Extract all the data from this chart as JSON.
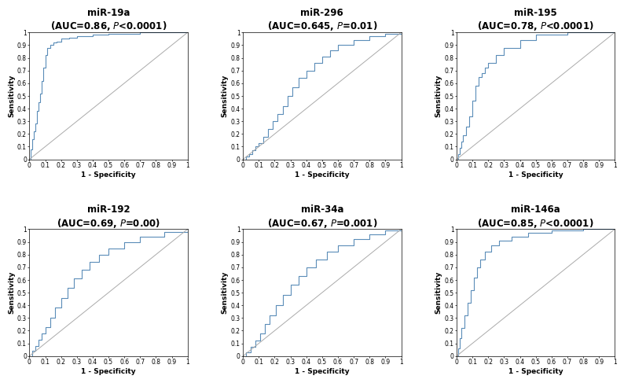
{
  "panels": [
    {
      "title": "miR-19a",
      "subtitle": "(AUC=0.86, ",
      "subtitle_p": "P",
      "subtitle_end": "<0.0001)",
      "auc": 0.86,
      "curve_shape": "high_auc",
      "row": 0,
      "col": 0,
      "fpr": [
        0,
        0.01,
        0.02,
        0.03,
        0.04,
        0.05,
        0.06,
        0.07,
        0.08,
        0.09,
        0.1,
        0.11,
        0.13,
        0.15,
        0.17,
        0.2,
        0.25,
        0.3,
        0.4,
        0.5,
        0.7,
        1.0
      ],
      "tpr": [
        0,
        0.08,
        0.16,
        0.22,
        0.28,
        0.38,
        0.45,
        0.52,
        0.62,
        0.72,
        0.82,
        0.88,
        0.9,
        0.92,
        0.93,
        0.95,
        0.96,
        0.97,
        0.98,
        0.99,
        1.0,
        1.0
      ]
    },
    {
      "title": "miR-296",
      "subtitle": "(AUC=0.645, ",
      "subtitle_p": "P",
      "subtitle_end": "=0.01)",
      "auc": 0.645,
      "curve_shape": "low_auc",
      "row": 0,
      "col": 1,
      "fpr": [
        0,
        0.02,
        0.04,
        0.06,
        0.08,
        0.1,
        0.13,
        0.16,
        0.19,
        0.22,
        0.25,
        0.28,
        0.31,
        0.35,
        0.4,
        0.45,
        0.5,
        0.55,
        0.6,
        0.7,
        0.8,
        0.9,
        1.0
      ],
      "tpr": [
        0,
        0.02,
        0.04,
        0.07,
        0.1,
        0.13,
        0.18,
        0.24,
        0.3,
        0.36,
        0.42,
        0.5,
        0.57,
        0.64,
        0.7,
        0.76,
        0.81,
        0.86,
        0.9,
        0.94,
        0.97,
        0.99,
        1.0
      ]
    },
    {
      "title": "miR-195",
      "subtitle": "(AUC=0.78, ",
      "subtitle_p": "P",
      "subtitle_end": "<0.0001)",
      "auc": 0.78,
      "curve_shape": "med_auc",
      "row": 0,
      "col": 2,
      "fpr": [
        0,
        0.01,
        0.02,
        0.03,
        0.04,
        0.06,
        0.08,
        0.1,
        0.12,
        0.14,
        0.16,
        0.18,
        0.2,
        0.25,
        0.3,
        0.4,
        0.5,
        0.7,
        1.0
      ],
      "tpr": [
        0,
        0.04,
        0.09,
        0.14,
        0.19,
        0.26,
        0.34,
        0.46,
        0.58,
        0.65,
        0.68,
        0.72,
        0.76,
        0.82,
        0.88,
        0.94,
        0.98,
        1.0,
        1.0
      ]
    },
    {
      "title": "miR-192",
      "subtitle": "(AUC=0.69, ",
      "subtitle_p": "P",
      "subtitle_end": "=0.00)",
      "auc": 0.69,
      "curve_shape": "med_low_auc",
      "row": 1,
      "col": 0,
      "fpr": [
        0,
        0.02,
        0.04,
        0.06,
        0.08,
        0.1,
        0.13,
        0.16,
        0.2,
        0.24,
        0.28,
        0.33,
        0.38,
        0.44,
        0.5,
        0.6,
        0.7,
        0.85,
        1.0
      ],
      "tpr": [
        0,
        0.04,
        0.08,
        0.13,
        0.18,
        0.23,
        0.3,
        0.38,
        0.46,
        0.54,
        0.61,
        0.68,
        0.74,
        0.8,
        0.85,
        0.9,
        0.94,
        0.98,
        1.0
      ]
    },
    {
      "title": "miR-34a",
      "subtitle": "(AUC=0.67, ",
      "subtitle_p": "P",
      "subtitle_end": "=0.001)",
      "auc": 0.67,
      "curve_shape": "med_low_auc2",
      "row": 1,
      "col": 1,
      "fpr": [
        0,
        0.02,
        0.05,
        0.08,
        0.11,
        0.14,
        0.17,
        0.21,
        0.25,
        0.3,
        0.35,
        0.4,
        0.46,
        0.53,
        0.6,
        0.7,
        0.8,
        0.9,
        1.0
      ],
      "tpr": [
        0,
        0.03,
        0.07,
        0.12,
        0.18,
        0.25,
        0.32,
        0.4,
        0.48,
        0.56,
        0.63,
        0.7,
        0.76,
        0.82,
        0.87,
        0.92,
        0.96,
        0.99,
        1.0
      ]
    },
    {
      "title": "miR-146a",
      "subtitle": "(AUC=0.85, ",
      "subtitle_p": "P",
      "subtitle_end": "<0.0001)",
      "auc": 0.85,
      "curve_shape": "high_auc2",
      "row": 1,
      "col": 2,
      "fpr": [
        0,
        0.01,
        0.02,
        0.03,
        0.05,
        0.07,
        0.09,
        0.11,
        0.13,
        0.15,
        0.18,
        0.22,
        0.27,
        0.35,
        0.45,
        0.6,
        0.8,
        1.0
      ],
      "tpr": [
        0,
        0.06,
        0.14,
        0.22,
        0.32,
        0.42,
        0.52,
        0.62,
        0.7,
        0.76,
        0.82,
        0.87,
        0.91,
        0.94,
        0.97,
        0.99,
        1.0,
        1.0
      ]
    }
  ],
  "line_color": "#5b8db8",
  "diag_color": "#aaaaaa",
  "bg_color": "#ffffff",
  "title_fontsize": 8.5,
  "axis_label_fontsize": 6.5,
  "tick_fontsize": 5.5
}
